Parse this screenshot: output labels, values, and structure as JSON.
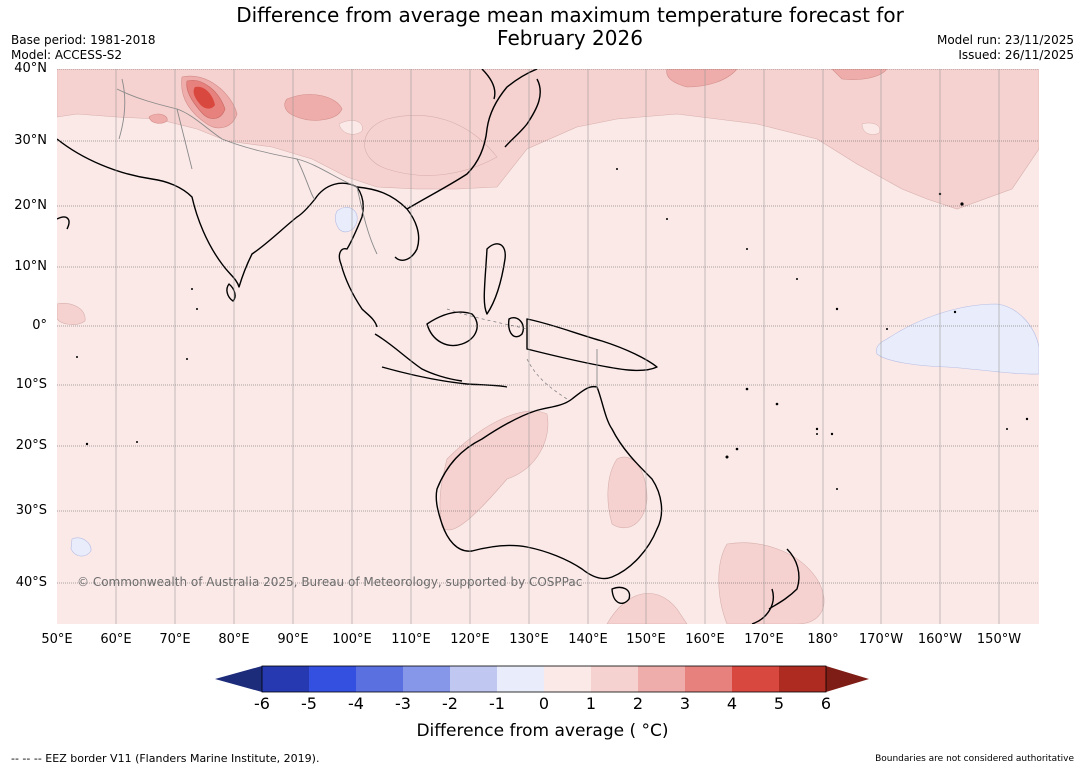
{
  "title": {
    "line1": "Difference from average mean maximum temperature forecast for",
    "line2": "February 2026"
  },
  "meta_left": {
    "base_period": "Base period: 1981-2018",
    "model": "Model: ACCESS-S2"
  },
  "meta_right": {
    "model_run": "Model run: 23/11/2025",
    "issued": "Issued: 26/11/2025"
  },
  "map": {
    "lat_labels": [
      "40°N",
      "30°N",
      "20°N",
      "10°N",
      "0°",
      "10°S",
      "20°S",
      "30°S",
      "40°S"
    ],
    "lon_labels": [
      "50°E",
      "60°E",
      "70°E",
      "80°E",
      "90°E",
      "100°E",
      "110°E",
      "120°E",
      "130°E",
      "140°E",
      "150°E",
      "160°E",
      "170°E",
      "180°",
      "170°W",
      "160°W",
      "150°W"
    ],
    "copyright": "© Commonwealth of Australia 2025, Bureau of Meteorology, supported by COSPPac"
  },
  "colorbar": {
    "ticks": [
      "-6",
      "-5",
      "-4",
      "-3",
      "-2",
      "-1",
      "0",
      "1",
      "2",
      "3",
      "4",
      "5",
      "6"
    ],
    "colors": [
      "#1c2b7a",
      "#2639b0",
      "#3450e0",
      "#5b70e0",
      "#8697ea",
      "#c0c8f2",
      "#e9ecfa",
      "#fbe9e8",
      "#f5d1cf",
      "#eeadaa",
      "#e6817d",
      "#d9483f",
      "#ae2b22",
      "#7e1d16"
    ],
    "label": "Difference from average ( °C)"
  },
  "footer": {
    "eez": "--  --  -- EEZ border V11 (Flanders Marine Institute, 2019).",
    "disclaimer": "Boundaries are not considered authoritative"
  }
}
